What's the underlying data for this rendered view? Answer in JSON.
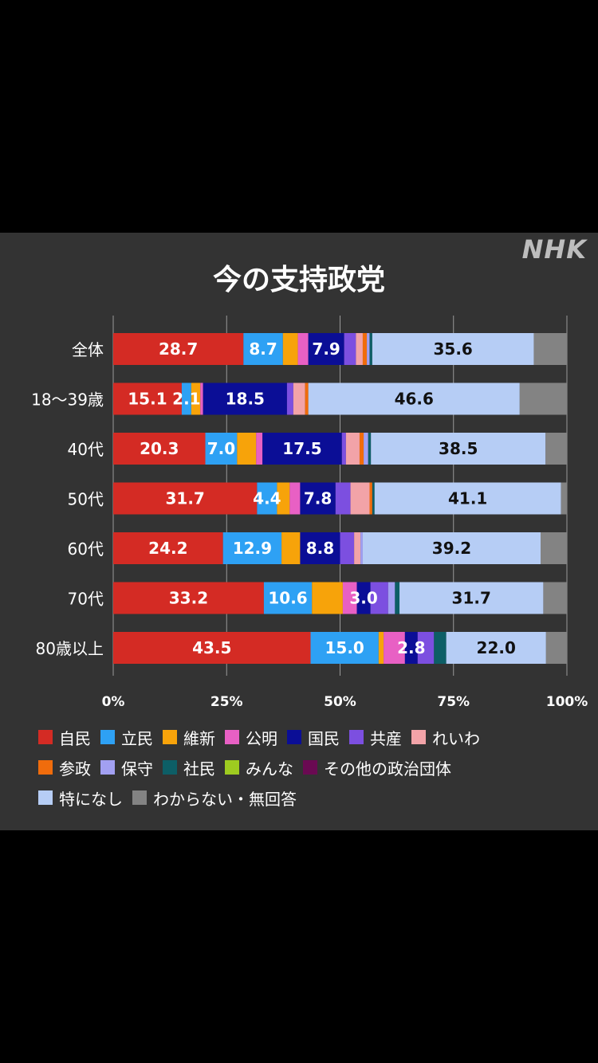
{
  "brand": "NHK",
  "chart_data": {
    "type": "bar",
    "orientation": "horizontal",
    "stacked": true,
    "title": "今の支持政党",
    "categories": [
      "全体",
      "18〜39歳",
      "40代",
      "50代",
      "60代",
      "70代",
      "80歳以上"
    ],
    "xlim": [
      0,
      100
    ],
    "xticks": [
      "0%",
      "25%",
      "50%",
      "75%",
      "100%"
    ],
    "grid": true,
    "legend_position": "bottom",
    "series": [
      {
        "name": "自民",
        "color": "#d42b24",
        "values": [
          28.7,
          15.1,
          20.3,
          31.7,
          24.2,
          33.2,
          43.5
        ]
      },
      {
        "name": "立民",
        "color": "#2ea1f4",
        "values": [
          8.7,
          2.1,
          7.0,
          4.4,
          12.9,
          10.6,
          15.0
        ]
      },
      {
        "name": "維新",
        "color": "#f7a30a",
        "values": [
          3.3,
          2.0,
          4.2,
          2.8,
          4.1,
          6.8,
          1.1
        ]
      },
      {
        "name": "公明",
        "color": "#e860c4",
        "values": [
          2.3,
          0.6,
          1.4,
          2.3,
          0.0,
          3.1,
          4.7
        ]
      },
      {
        "name": "国民",
        "color": "#0b0e96",
        "values": [
          7.9,
          18.5,
          17.5,
          7.8,
          8.8,
          3.0,
          2.8
        ]
      },
      {
        "name": "共産",
        "color": "#7c4fe0",
        "values": [
          2.6,
          1.4,
          0.9,
          3.3,
          3.1,
          3.9,
          3.6
        ]
      },
      {
        "name": "れいわ",
        "color": "#f2a3a8",
        "values": [
          1.5,
          2.6,
          3.0,
          4.2,
          1.4,
          0.0,
          0.0
        ]
      },
      {
        "name": "参政",
        "color": "#f06c0c",
        "values": [
          0.9,
          0.7,
          0.9,
          0.6,
          0.0,
          0.0,
          0.0
        ]
      },
      {
        "name": "保守",
        "color": "#a2a0f2",
        "values": [
          0.6,
          0.0,
          1.0,
          0.0,
          0.5,
          1.5,
          0.0
        ]
      },
      {
        "name": "社民",
        "color": "#0d5e66",
        "values": [
          0.6,
          0.0,
          0.6,
          0.5,
          0.0,
          1.0,
          2.7
        ]
      },
      {
        "name": "みんな",
        "color": "#9ecb20",
        "values": [
          0.0,
          0.0,
          0.0,
          0.0,
          0.0,
          0.0,
          0.0
        ]
      },
      {
        "name": "その他の政治団体",
        "color": "#6a0a52",
        "values": [
          0.0,
          0.0,
          0.0,
          0.0,
          0.0,
          0.0,
          0.0
        ]
      },
      {
        "name": "特になし",
        "color": "#b6cdf5",
        "values": [
          35.6,
          46.6,
          38.5,
          41.1,
          39.2,
          31.7,
          22.0
        ]
      },
      {
        "name": "わからない・無回答",
        "color": "#838383",
        "values": [
          7.3,
          10.4,
          4.7,
          1.4,
          5.8,
          5.2,
          4.6
        ]
      }
    ],
    "data_labels": {
      "自民": [
        28.7,
        15.1,
        20.3,
        31.7,
        24.2,
        33.2,
        43.5
      ],
      "立民": [
        8.7,
        2.1,
        7.0,
        4.4,
        12.9,
        10.6,
        15.0
      ],
      "国民": [
        7.9,
        18.5,
        17.5,
        7.8,
        8.8,
        3.0,
        2.8
      ],
      "特になし": [
        35.6,
        46.6,
        38.5,
        41.1,
        39.2,
        31.7,
        22.0
      ]
    }
  }
}
